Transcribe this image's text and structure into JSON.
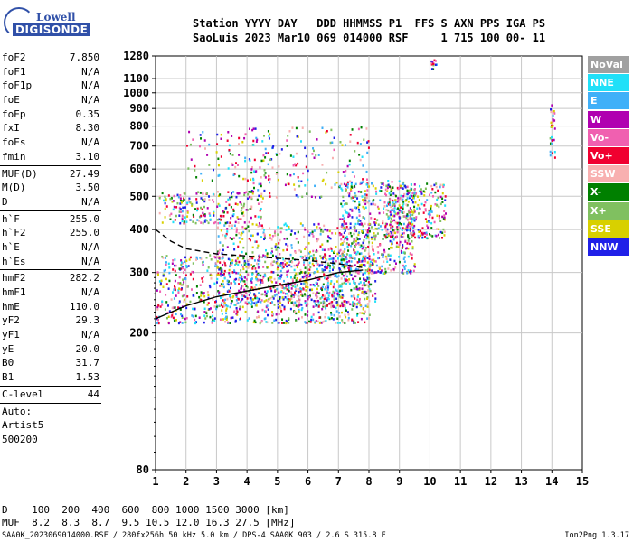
{
  "logo": {
    "line1": "Lowell",
    "line2": "DIGISONDE"
  },
  "header": {
    "line1": "Station YYYY DAY   DDD HHMMSS P1  FFS S AXN PPS IGA PS",
    "line2": "SaoLuis 2023 Mar10 069 014000 RSF     1 715 100 00- 11"
  },
  "params_group1": [
    {
      "label": "foF2",
      "value": "7.850"
    },
    {
      "label": "foF1",
      "value": "N/A"
    },
    {
      "label": "foF1p",
      "value": "N/A"
    },
    {
      "label": "foE",
      "value": "N/A"
    },
    {
      "label": "foEp",
      "value": "0.35"
    },
    {
      "label": "fxI",
      "value": "8.30"
    },
    {
      "label": "foEs",
      "value": "N/A"
    },
    {
      "label": "fmin",
      "value": "3.10"
    }
  ],
  "params_group2": [
    {
      "label": "MUF(D)",
      "value": "27.49"
    },
    {
      "label": "M(D)",
      "value": "3.50"
    },
    {
      "label": "D",
      "value": "N/A"
    }
  ],
  "params_group3": [
    {
      "label": "h`F",
      "value": "255.0"
    },
    {
      "label": "h`F2",
      "value": "255.0"
    },
    {
      "label": "h`E",
      "value": "N/A"
    },
    {
      "label": "h`Es",
      "value": "N/A"
    }
  ],
  "params_group4": [
    {
      "label": "hmF2",
      "value": "282.2"
    },
    {
      "label": "hmF1",
      "value": "N/A"
    },
    {
      "label": "hmE",
      "value": "110.0"
    },
    {
      "label": "yF2",
      "value": "29.3"
    },
    {
      "label": "yF1",
      "value": "N/A"
    },
    {
      "label": "yE",
      "value": "20.0"
    },
    {
      "label": "B0",
      "value": "31.7"
    },
    {
      "label": "B1",
      "value": "1.53"
    }
  ],
  "params_group5": [
    {
      "label": "C-level",
      "value": "44"
    }
  ],
  "auto": {
    "line1": "Auto:",
    "line2": "Artist5",
    "line3": "500200"
  },
  "legend": [
    {
      "label": "NoVal",
      "color": "#a0a0a0"
    },
    {
      "label": "NNE",
      "color": "#20e0f8"
    },
    {
      "label": "E",
      "color": "#40b0f8"
    },
    {
      "label": "W",
      "color": "#b000b0"
    },
    {
      "label": "Vo-",
      "color": "#f060b0"
    },
    {
      "label": "Vo+",
      "color": "#f00030"
    },
    {
      "label": "SSW",
      "color": "#f8b0b0"
    },
    {
      "label": "X-",
      "color": "#008000"
    },
    {
      "label": "X+",
      "color": "#80c060"
    },
    {
      "label": "SSE",
      "color": "#d8d000"
    },
    {
      "label": "NNW",
      "color": "#2020e8"
    }
  ],
  "bottom": {
    "line1": "D    100  200  400  600  800 1000 1500 3000 [km]",
    "line2": "MUF  8.2  8.3  8.7  9.5 10.5 12.0 16.3 27.5 [MHz]"
  },
  "footer": {
    "left": "SAA0K_2023069014000.RSF / 280fx256h 50 kHz 5.0 km / DPS-4 SAA0K 903 / 2.6 S 315.8 E",
    "right": "Ion2Png 1.3.17"
  },
  "chart_data": {
    "type": "scatter",
    "x_ticks": [
      1,
      2,
      3,
      4,
      5,
      6,
      7,
      8,
      9,
      10,
      11,
      12,
      13,
      14,
      15
    ],
    "y_ticks": [
      80,
      200,
      300,
      400,
      500,
      600,
      700,
      800,
      900,
      1000,
      1100,
      1280
    ],
    "xlim": [
      1,
      15
    ],
    "ylim": [
      80,
      1280
    ],
    "y_scale": "log",
    "grid": true,
    "profile_curve": {
      "x": [
        1.0,
        2.0,
        3.0,
        4.0,
        5.0,
        6.0,
        7.0,
        7.8
      ],
      "y": [
        220,
        240,
        255,
        265,
        275,
        285,
        300,
        305
      ]
    },
    "profile_dashed": {
      "x": [
        1.0,
        1.5,
        2.0,
        3.0,
        4.0,
        5.0,
        6.0,
        7.0,
        7.8
      ],
      "y": [
        400,
        370,
        352,
        340,
        335,
        330,
        325,
        318,
        310
      ]
    },
    "clusters": [
      {
        "x0": 1.0,
        "x1": 8.0,
        "y0": 215,
        "y1": 340,
        "n": 900
      },
      {
        "x0": 3.0,
        "x1": 8.2,
        "y0": 240,
        "y1": 420,
        "n": 700
      },
      {
        "x0": 7.0,
        "x1": 9.5,
        "y0": 300,
        "y1": 560,
        "n": 500
      },
      {
        "x0": 8.5,
        "x1": 10.5,
        "y0": 380,
        "y1": 550,
        "n": 300
      },
      {
        "x0": 1.1,
        "x1": 4.5,
        "y0": 420,
        "y1": 520,
        "n": 220
      },
      {
        "x0": 2.0,
        "x1": 5.0,
        "y0": 560,
        "y1": 780,
        "n": 90
      },
      {
        "x0": 4.0,
        "x1": 8.0,
        "y0": 500,
        "y1": 800,
        "n": 160
      },
      {
        "x0": 13.9,
        "x1": 14.1,
        "y0": 640,
        "y1": 930,
        "n": 30
      },
      {
        "x0": 10.0,
        "x1": 10.2,
        "y0": 1180,
        "y1": 1280,
        "n": 12
      }
    ]
  }
}
